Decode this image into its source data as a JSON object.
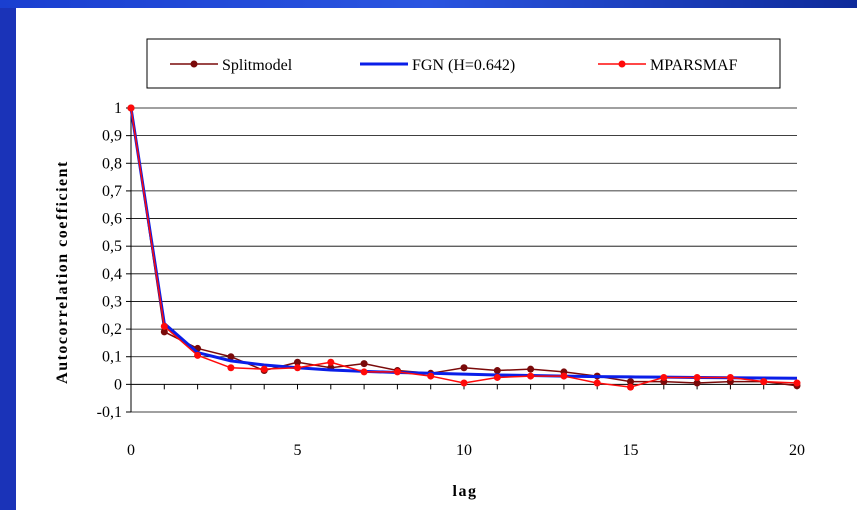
{
  "chart_data": {
    "type": "line",
    "title": "",
    "xlabel": "lag",
    "ylabel": "Autocorrelation coefficient",
    "xlim": [
      0,
      20
    ],
    "ylim": [
      -0.1,
      1
    ],
    "x_ticks": [
      "0",
      "5",
      "10",
      "15",
      "20"
    ],
    "y_ticks": [
      "-0,1",
      "0",
      "0,1",
      "0,2",
      "0,3",
      "0,4",
      "0,5",
      "0,6",
      "0,7",
      "0,8",
      "0,9",
      "1"
    ],
    "grid": "horizontal",
    "legend_position": "top",
    "x": [
      0,
      1,
      2,
      3,
      4,
      5,
      6,
      7,
      8,
      9,
      10,
      11,
      12,
      13,
      14,
      15,
      16,
      17,
      18,
      19,
      20
    ],
    "series": [
      {
        "name": "Splitmodel",
        "color": "#7a0a0a",
        "marker": true,
        "values": [
          1.0,
          0.19,
          0.13,
          0.1,
          0.05,
          0.08,
          0.06,
          0.075,
          0.05,
          0.04,
          0.06,
          0.05,
          0.055,
          0.045,
          0.03,
          0.01,
          0.01,
          0.005,
          0.01,
          0.01,
          -0.005
        ]
      },
      {
        "name": "FGN (H=0.642)",
        "color": "#0a1ee8",
        "marker": false,
        "values": [
          1.0,
          0.22,
          0.115,
          0.085,
          0.07,
          0.06,
          0.052,
          0.047,
          0.043,
          0.04,
          0.037,
          0.034,
          0.032,
          0.03,
          0.028,
          0.027,
          0.026,
          0.025,
          0.024,
          0.023,
          0.022
        ]
      },
      {
        "name": "MPARSMAF",
        "color": "#ff0a0a",
        "marker": true,
        "values": [
          1.0,
          0.21,
          0.105,
          0.06,
          0.055,
          0.06,
          0.08,
          0.045,
          0.045,
          0.03,
          0.005,
          0.025,
          0.03,
          0.03,
          0.005,
          -0.01,
          0.025,
          0.025,
          0.025,
          0.01,
          0.005
        ]
      }
    ]
  }
}
